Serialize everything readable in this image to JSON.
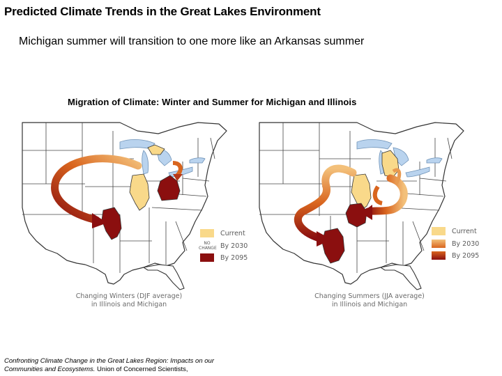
{
  "slide": {
    "title": "Predicted Climate Trends in the Great Lakes Environment",
    "subtitle": "Michigan summer will transition to one more like an Arkansas summer"
  },
  "figure": {
    "title": "Migration of Climate: Winter and Summer for Michigan and Illinois",
    "maps": [
      {
        "caption_line1": "Changing Winters (DJF average)",
        "caption_line2": "in Illinois and Michigan",
        "legend": [
          {
            "label": "Current",
            "color": "#f9d98a"
          },
          {
            "label": "By 2030",
            "color": "#ffffff",
            "swatch_text_1": "NO",
            "swatch_text_2": "CHANGE"
          },
          {
            "label": "By 2095",
            "color": "#8b0f0f"
          }
        ]
      },
      {
        "caption_line1": "Changing Summers (JJA average)",
        "caption_line2": "in Illinois and Michigan",
        "legend": [
          {
            "label": "Current",
            "color": "#f9d98a"
          },
          {
            "label": "By 2030",
            "color": "#d9651e"
          },
          {
            "label": "By 2095",
            "color": "#8b0f0f"
          }
        ]
      }
    ],
    "colors": {
      "lakes": "#b9d3ee",
      "current": "#f9d98a",
      "by_2030": "#d9651e",
      "by_2095": "#8b0f0f",
      "borders": "#333333"
    }
  },
  "source": {
    "line1": "Confronting Climate Change in the Great Lakes Region: Impacts on our",
    "line2_italic": "Communities and Ecosystems.",
    "line2_org": " Union of Concerned Scientists,"
  }
}
